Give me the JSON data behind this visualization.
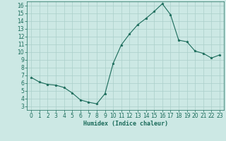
{
  "x": [
    0,
    1,
    2,
    3,
    4,
    5,
    6,
    7,
    8,
    9,
    10,
    11,
    12,
    13,
    14,
    15,
    16,
    17,
    18,
    19,
    20,
    21,
    22,
    23
  ],
  "y": [
    6.7,
    6.1,
    5.8,
    5.7,
    5.4,
    4.7,
    3.8,
    3.5,
    3.3,
    4.6,
    8.5,
    10.9,
    12.3,
    13.5,
    14.3,
    15.2,
    16.2,
    14.8,
    11.5,
    11.3,
    10.1,
    9.8,
    9.2,
    9.6
  ],
  "line_color": "#1a6b5a",
  "marker": "*",
  "marker_size": 2.5,
  "bg_color": "#cce8e4",
  "grid_color": "#aacfca",
  "xlabel": "Humidex (Indice chaleur)",
  "xlim": [
    -0.5,
    23.5
  ],
  "ylim": [
    2.5,
    16.5
  ],
  "yticks": [
    3,
    4,
    5,
    6,
    7,
    8,
    9,
    10,
    11,
    12,
    13,
    14,
    15,
    16
  ],
  "xticks": [
    0,
    1,
    2,
    3,
    4,
    5,
    6,
    7,
    8,
    9,
    10,
    11,
    12,
    13,
    14,
    15,
    16,
    17,
    18,
    19,
    20,
    21,
    22,
    23
  ],
  "tick_color": "#1a6b5a",
  "label_fontsize": 6,
  "tick_fontsize": 5.5,
  "linewidth": 0.8
}
